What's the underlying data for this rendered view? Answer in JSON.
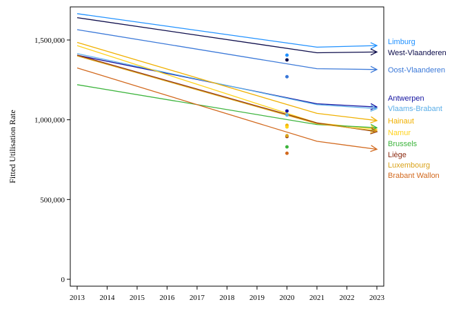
{
  "chart_data": {
    "type": "line",
    "title": "",
    "xlabel": "",
    "ylabel": "Fitted Utilisation Rate",
    "x": [
      2013,
      2021,
      2023
    ],
    "x_ticks": [
      "2013",
      "2014",
      "2015",
      "2016",
      "2017",
      "2018",
      "2019",
      "2020",
      "2021",
      "2022",
      "2023"
    ],
    "y_ticks": [
      "0",
      "500,000",
      "1,000,000",
      "1,500,000"
    ],
    "xlim": [
      2013,
      2023
    ],
    "ylim": [
      0,
      1700000
    ],
    "grid": false,
    "legend": "right, end-of-line labels",
    "series": [
      {
        "name": "Limburg",
        "color": "#1e90ff",
        "values": [
          1665000,
          1455000,
          1465000
        ],
        "point_2020": 1405000
      },
      {
        "name": "West-Vlaanderen",
        "color": "#0b0b4a",
        "values": [
          1640000,
          1420000,
          1425000
        ],
        "point_2020": 1375000
      },
      {
        "name": "Oost-Vlaanderen",
        "color": "#3a78d8",
        "values": [
          1565000,
          1320000,
          1315000
        ],
        "point_2020": 1270000
      },
      {
        "name": "Antwerpen",
        "color": "#1414a0",
        "values": [
          1405000,
          1100000,
          1080000
        ],
        "point_2020": 1055000
      },
      {
        "name": "Vlaams-Brabant",
        "color": "#5aaee8",
        "values": [
          1415000,
          1095000,
          1070000
        ],
        "point_2020": 1030000
      },
      {
        "name": "Hainaut",
        "color": "#f0b000",
        "values": [
          1485000,
          1040000,
          995000
        ],
        "point_2020": 965000
      },
      {
        "name": "Namur",
        "color": "#ffd21a",
        "values": [
          1465000,
          980000,
          940000
        ],
        "point_2020": 955000
      },
      {
        "name": "Brussels",
        "color": "#3cb43c",
        "values": [
          1220000,
          970000,
          950000
        ],
        "point_2020": 830000
      },
      {
        "name": "Liège",
        "color": "#8b2a10",
        "values": [
          1405000,
          980000,
          925000
        ],
        "point_2020": 895000
      },
      {
        "name": "Luxembourg",
        "color": "#d9a21a",
        "values": [
          1400000,
          975000,
          930000
        ],
        "point_2020": 900000
      },
      {
        "name": "Brabant Wallon",
        "color": "#d2691e",
        "values": [
          1325000,
          865000,
          815000
        ],
        "point_2020": 790000
      }
    ],
    "legend_entries": [
      {
        "name": "Limburg",
        "color": "#1e90ff"
      },
      {
        "name": "West-Vlaanderen",
        "color": "#0b0b4a"
      },
      {
        "name": "Oost-Vlaanderen",
        "color": "#3a78d8"
      },
      {
        "name": "Antwerpen",
        "color": "#1414a0"
      },
      {
        "name": "Vlaams-Brabant",
        "color": "#5aaee8"
      },
      {
        "name": "Hainaut",
        "color": "#f0b000"
      },
      {
        "name": "Namur",
        "color": "#ffd21a"
      },
      {
        "name": "Brussels",
        "color": "#3cb43c"
      },
      {
        "name": "Liège",
        "color": "#8b2a10"
      },
      {
        "name": "Luxembourg",
        "color": "#d9a21a"
      },
      {
        "name": "Brabant Wallon",
        "color": "#d2691e"
      }
    ]
  }
}
